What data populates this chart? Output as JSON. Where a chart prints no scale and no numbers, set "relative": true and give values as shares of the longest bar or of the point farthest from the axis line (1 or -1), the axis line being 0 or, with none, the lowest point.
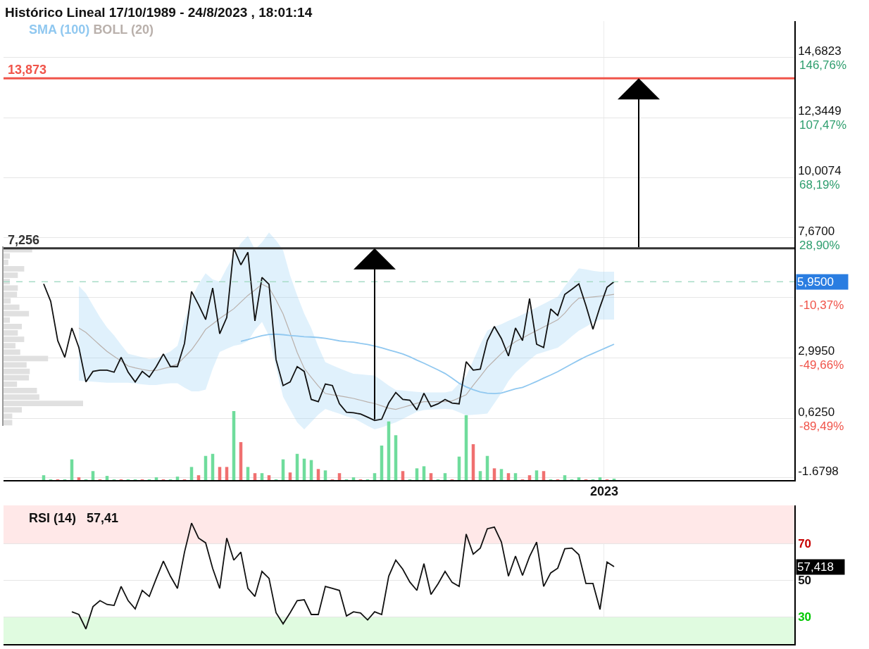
{
  "chart_data": [
    {
      "type": "line",
      "title": "Histórico Lineal 17/10/1989 - 24/8/2023 , 18:01:14",
      "tick_labels": "y",
      "categories": [
        null,
        null,
        null,
        null,
        null,
        null,
        null,
        null,
        null,
        null,
        null,
        null,
        null,
        null,
        null,
        null,
        null,
        null,
        null,
        null,
        null,
        null,
        null,
        null,
        null,
        null,
        null,
        null,
        null,
        null,
        null,
        null,
        null,
        null,
        null,
        null,
        null,
        null,
        null,
        null,
        null,
        null,
        null,
        null,
        null,
        null,
        null,
        null,
        null,
        null,
        null,
        null,
        null,
        null,
        null,
        null,
        null,
        null,
        null,
        null,
        null,
        null,
        null,
        null,
        null,
        null,
        null,
        null,
        null,
        null,
        null,
        null,
        null,
        null,
        null,
        null,
        null,
        null,
        null,
        null,
        null,
        null
      ],
      "annotations": [
        "2023"
      ],
      "ylim": [
        -1.77,
        16.1
      ],
      "yticks": [
        {
          "value": 14.6823,
          "label": "14,6823"
        },
        {
          "value": 12.3449,
          "label": "12,3449"
        },
        {
          "value": 10.0074,
          "label": "10,0074"
        },
        {
          "value": 7.67,
          "label": "7,6700"
        },
        {
          "value": 5.3325,
          "label": null
        },
        {
          "value": 2.995,
          "label": "2,9950"
        },
        {
          "value": 0.625,
          "label": "0,6250"
        },
        {
          "value": -1.6798,
          "label": "-1.6798"
        }
      ],
      "y2lim": [
        -129.75,
        170.59
      ],
      "y2ticks": [
        {
          "value": 146.76,
          "label": "146,76%"
        },
        {
          "value": 107.47,
          "label": "107,47%"
        },
        {
          "value": 68.19,
          "label": "68,19%"
        },
        {
          "value": 28.9,
          "label": "28,90%"
        },
        {
          "value": -10.37,
          "label": "-10,37%"
        },
        {
          "value": -49.66,
          "label": "-49,66%"
        },
        {
          "value": -89.49,
          "label": "-89,49%"
        }
      ],
      "grid": "y",
      "ref_lines": [
        {
          "axis": "y",
          "value": 13.873,
          "label": "13,873",
          "color": "#f0544a",
          "line_style": "solid"
        },
        {
          "axis": "y",
          "value": 7.256,
          "label": "7,256",
          "color": "#333333",
          "line_style": "solid"
        },
        {
          "axis": "y",
          "value": 5.95,
          "label": "5,9500",
          "color": "#a8dcc8",
          "line_style": "dashed"
        }
      ],
      "series": [
        {
          "name": "BOLL (20)",
          "type": "line",
          "color": "#b9b0ab",
          "values": [
            null,
            null,
            null,
            null,
            null,
            4.15,
            3.98,
            3.73,
            3.48,
            3.24,
            3.05,
            2.86,
            2.67,
            2.6,
            2.54,
            2.49,
            2.5,
            2.57,
            2.64,
            2.75,
            3.02,
            3.3,
            3.68,
            4.1,
            4.31,
            4.52,
            4.71,
            4.9,
            5.16,
            5.42,
            5.63,
            5.86,
            5.72,
            5.24,
            4.7,
            3.96,
            3.2,
            2.58,
            2.23,
            1.89,
            1.6,
            1.55,
            1.51,
            1.46,
            1.41,
            1.34,
            1.27,
            1.21,
            1.12,
            1.03,
            0.98,
            1.06,
            1.14,
            1.22,
            1.28,
            1.28,
            1.28,
            1.28,
            1.31,
            1.43,
            1.55,
            1.92,
            2.26,
            2.62,
            2.89,
            3.16,
            3.42,
            3.62,
            3.76,
            3.91,
            4.05,
            4.19,
            4.33,
            4.47,
            4.73,
            5.06,
            5.31,
            5.33,
            5.36,
            5.39,
            5.42,
            5.46
          ],
          "upper": [
            null,
            null,
            null,
            null,
            null,
            5.79,
            5.5,
            5.03,
            4.57,
            4.17,
            3.86,
            3.5,
            3.15,
            3.08,
            3.01,
            2.95,
            2.97,
            3.11,
            3.24,
            3.46,
            4.43,
            5.3,
            5.86,
            6.28,
            6.04,
            5.96,
            6.49,
            6.97,
            7.45,
            7.74,
            7.21,
            7.49,
            7.87,
            7.56,
            7.18,
            6.19,
            5.42,
            4.71,
            4.14,
            3.43,
            2.82,
            2.7,
            2.58,
            2.47,
            2.37,
            2.35,
            2.32,
            2.3,
            2.11,
            1.91,
            1.74,
            1.72,
            1.69,
            1.66,
            1.64,
            1.64,
            1.64,
            1.64,
            1.7,
            2.0,
            2.27,
            2.89,
            3.51,
            4.05,
            4.2,
            4.3,
            4.43,
            4.55,
            4.68,
            4.81,
            4.95,
            5.09,
            5.23,
            5.37,
            5.78,
            6.13,
            6.47,
            6.43,
            6.38,
            6.34,
            6.34,
            6.34
          ],
          "lower": [
            null,
            null,
            null,
            null,
            null,
            2.1,
            2.08,
            2.06,
            2.04,
            2.02,
            2.02,
            2.02,
            2.02,
            1.99,
            1.96,
            1.93,
            1.93,
            1.97,
            2.0,
            2.0,
            1.83,
            1.68,
            1.68,
            1.75,
            2.56,
            3.22,
            3.34,
            3.46,
            3.51,
            3.64,
            4.07,
            4.39,
            3.84,
            2.61,
            1.47,
            0.97,
            0.48,
            0.2,
            0.49,
            0.78,
            1.0,
            0.9,
            0.81,
            0.71,
            0.64,
            0.49,
            0.34,
            0.2,
            0.28,
            0.38,
            0.48,
            0.61,
            0.75,
            0.89,
            0.96,
            0.98,
            0.99,
            1.0,
            0.98,
            0.87,
            0.75,
            0.77,
            0.79,
            0.82,
            1.22,
            1.62,
            2.08,
            2.42,
            2.67,
            2.91,
            3.13,
            3.21,
            3.3,
            3.38,
            3.59,
            3.83,
            4.05,
            4.2,
            4.36,
            4.48,
            4.48,
            4.48
          ]
        },
        {
          "name": "SMA (100)",
          "type": "line",
          "color": "#90c8f0",
          "values": [
            null,
            null,
            null,
            null,
            null,
            null,
            null,
            null,
            null,
            null,
            null,
            null,
            null,
            null,
            null,
            null,
            null,
            null,
            null,
            null,
            null,
            null,
            null,
            null,
            null,
            null,
            null,
            null,
            3.63,
            3.7,
            3.78,
            3.85,
            3.9,
            3.91,
            3.89,
            3.86,
            3.84,
            3.81,
            3.8,
            3.78,
            3.75,
            3.7,
            3.65,
            3.62,
            3.6,
            3.55,
            3.51,
            3.45,
            3.38,
            3.3,
            3.22,
            3.14,
            3.03,
            2.9,
            2.78,
            2.65,
            2.52,
            2.38,
            2.2,
            2.0,
            1.86,
            1.75,
            1.66,
            1.61,
            1.6,
            1.62,
            1.7,
            1.78,
            1.84,
            1.95,
            2.07,
            2.2,
            2.32,
            2.45,
            2.6,
            2.75,
            2.9,
            3.04,
            3.16,
            3.28,
            3.4,
            3.52
          ]
        },
        {
          "type": "line",
          "color": "#111111",
          "values": [
            5.87,
            5.19,
            3.66,
            3.01,
            4.15,
            3.39,
            2.05,
            2.46,
            2.51,
            2.51,
            2.43,
            3.01,
            2.43,
            2.05,
            2.46,
            2.24,
            2.65,
            3.14,
            2.65,
            2.65,
            3.55,
            5.57,
            5.05,
            4.48,
            5.71,
            3.93,
            4.56,
            7.26,
            6.61,
            7.1,
            4.43,
            6.12,
            5.85,
            2.92,
            1.91,
            2.05,
            2.65,
            2.46,
            1.37,
            1.28,
            1.97,
            1.91,
            1.2,
            0.87,
            0.85,
            0.8,
            0.68,
            0.55,
            0.6,
            1.23,
            1.64,
            1.37,
            1.34,
            0.96,
            1.61,
            1.09,
            1.2,
            1.37,
            1.23,
            1.2,
            2.84,
            2.51,
            2.55,
            3.66,
            4.21,
            3.74,
            3.06,
            4.15,
            3.66,
            5.3,
            3.52,
            3.39,
            4.89,
            4.64,
            5.46,
            5.66,
            5.87,
            5.03,
            4.1,
            4.97,
            5.74,
            5.95
          ]
        }
      ]
    },
    {
      "type": "bar",
      "orientation": "horizontal",
      "relative": true,
      "tick_labels": false,
      "color": "#e0e0e0",
      "categories": [
        null,
        null,
        null,
        null,
        null,
        null,
        null,
        null,
        null,
        null,
        null,
        null,
        null,
        null,
        null,
        null,
        null,
        null,
        null,
        null,
        null,
        null,
        null,
        null,
        null,
        null,
        null,
        null
      ],
      "values": [
        0.36,
        0.08,
        0.06,
        0.26,
        0.18,
        0.08,
        0.18,
        0.17,
        0.09,
        0.2,
        0.32,
        0.08,
        0.23,
        0.18,
        0.26,
        0.15,
        0.21,
        0.56,
        0.29,
        0.33,
        0.32,
        0.17,
        0.42,
        0.45,
        1,
        0.23,
        0.11,
        0.11
      ]
    },
    {
      "type": "bar",
      "relative": true,
      "tick_labels": false,
      "categories": [
        null,
        null,
        null,
        null,
        null,
        null,
        null,
        null,
        null,
        null,
        null,
        null,
        null,
        null,
        null,
        null,
        null,
        null,
        null,
        null,
        null,
        null,
        null,
        null,
        null,
        null,
        null,
        null,
        null,
        null,
        null,
        null,
        null,
        null,
        null,
        null,
        null,
        null,
        null,
        null,
        null,
        null,
        null,
        null,
        null,
        null,
        null,
        null,
        null,
        null,
        null,
        null,
        null,
        null,
        null,
        null,
        null,
        null,
        null,
        null,
        null,
        null,
        null,
        null,
        null,
        null,
        null,
        null,
        null,
        null,
        null,
        null,
        null,
        null,
        null,
        null,
        null,
        null,
        null,
        null,
        null,
        null
      ],
      "values": [
        0.07,
        0.01,
        0.01,
        0.01,
        0.3,
        0.04,
        0.01,
        0.13,
        0.01,
        0.06,
        0.01,
        0.01,
        0.01,
        0.01,
        0.01,
        0.01,
        0.04,
        0.01,
        0.01,
        0.05,
        0.01,
        0.19,
        0.07,
        0.35,
        0.38,
        0.19,
        0.19,
        1,
        0.55,
        0.19,
        0.1,
        0.1,
        0.07,
        0.01,
        0.3,
        0.11,
        0.38,
        0.31,
        0.29,
        0.16,
        0.14,
        0.01,
        0.1,
        0.01,
        0.04,
        0.01,
        0.01,
        0.1,
        0.5,
        0.85,
        0.65,
        0.13,
        0.01,
        0.17,
        0.2,
        0.1,
        0.01,
        0.1,
        0.01,
        0.34,
        0.94,
        0.52,
        0.13,
        0.35,
        0.17,
        0.16,
        0.1,
        0.1,
        0.01,
        0.07,
        0.14,
        0.13,
        0.01,
        0.01,
        0.07,
        0.01,
        0.04,
        0.01,
        0.01,
        0.04,
        0.01,
        0.02
      ],
      "colors": [
        "#6fdc9c",
        "#6fdc9c",
        "#f07070",
        "#6fdc9c",
        "#6fdc9c",
        "#f07070",
        "#6fdc9c",
        "#6fdc9c",
        "#f07070",
        "#6fdc9c",
        "#6fdc9c",
        "#f07070",
        "#6fdc9c",
        "#6fdc9c",
        "#f07070",
        "#6fdc9c",
        "#6fdc9c",
        "#f07070",
        "#6fdc9c",
        "#6fdc9c",
        "#f07070",
        "#6fdc9c",
        "#f07070",
        "#6fdc9c",
        "#6fdc9c",
        "#f07070",
        "#f07070",
        "#6fdc9c",
        "#f07070",
        "#6fdc9c",
        "#f07070",
        "#6fdc9c",
        "#f07070",
        "#6fdc9c",
        "#6fdc9c",
        "#f07070",
        "#6fdc9c",
        "#6fdc9c",
        "#6fdc9c",
        "#f07070",
        "#6fdc9c",
        "#f07070",
        "#f07070",
        "#6fdc9c",
        "#6fdc9c",
        "#f07070",
        "#6fdc9c",
        "#6fdc9c",
        "#6fdc9c",
        "#6fdc9c",
        "#6fdc9c",
        "#f07070",
        "#6fdc9c",
        "#6fdc9c",
        "#6fdc9c",
        "#f07070",
        "#6fdc9c",
        "#6fdc9c",
        "#f07070",
        "#6fdc9c",
        "#6fdc9c",
        "#f07070",
        "#6fdc9c",
        "#6fdc9c",
        "#f07070",
        "#6fdc9c",
        "#f07070",
        "#6fdc9c",
        "#f07070",
        "#f07070",
        "#6fdc9c",
        "#f07070",
        "#6fdc9c",
        "#f07070",
        "#6fdc9c",
        "#6fdc9c",
        "#6fdc9c",
        "#f07070",
        "#6fdc9c",
        "#6fdc9c",
        "#f07070",
        "#6fdc9c"
      ]
    },
    {
      "type": "line",
      "title": "RSI (14)   57,41",
      "tick_labels": "y",
      "grid": "y",
      "categories": [
        null,
        null,
        null,
        null,
        null,
        null,
        null,
        null,
        null,
        null,
        null,
        null,
        null,
        null,
        null,
        null,
        null,
        null,
        null,
        null,
        null,
        null,
        null,
        null,
        null,
        null,
        null,
        null,
        null,
        null,
        null,
        null,
        null,
        null,
        null,
        null,
        null,
        null,
        null,
        null,
        null,
        null,
        null,
        null,
        null,
        null,
        null,
        null,
        null,
        null,
        null,
        null,
        null,
        null,
        null,
        null,
        null,
        null,
        null,
        null,
        null,
        null,
        null,
        null,
        null,
        null,
        null,
        null,
        null,
        null,
        null,
        null,
        null,
        null,
        null,
        null,
        null,
        null,
        null,
        null,
        null,
        null
      ],
      "ylim": [
        15,
        91
      ],
      "yticks": [
        70,
        50,
        30
      ],
      "bands": [
        {
          "axis": "y",
          "from": 70,
          "to": 91,
          "color": "#ffe8e8"
        },
        {
          "axis": "y",
          "from": 15,
          "to": 30,
          "color": "#e0fbe0"
        }
      ],
      "annotations": [
        "57,418"
      ],
      "series": [
        {
          "type": "line",
          "color": "#111111",
          "values": [
            null,
            null,
            null,
            null,
            32.7,
            31.2,
            23.3,
            35.5,
            38.8,
            36.7,
            36.2,
            46.6,
            38.8,
            34.3,
            44.4,
            41.1,
            51.0,
            60.5,
            52.2,
            45.5,
            65.4,
            81.3,
            73.1,
            70.5,
            56.5,
            45.5,
            73.1,
            61.0,
            65.4,
            45.5,
            41.1,
            54.8,
            51.0,
            32.2,
            26.1,
            32.2,
            38.8,
            39.3,
            31.2,
            31.2,
            46.6,
            45.5,
            44.4,
            30.4,
            32.7,
            32.0,
            28.2,
            32.7,
            31.2,
            52.2,
            61.0,
            56.0,
            49.0,
            44.4,
            59.1,
            42.2,
            48.0,
            54.8,
            48.8,
            46.6,
            75.3,
            64.3,
            67.6,
            78.2,
            79.1,
            70.9,
            52.2,
            63.2,
            52.6,
            63.0,
            70.9,
            46.6,
            54.0,
            56.6,
            67.2,
            67.6,
            64.0,
            48.2,
            48.2,
            34.0,
            59.9,
            57.4
          ]
        }
      ]
    }
  ]
}
